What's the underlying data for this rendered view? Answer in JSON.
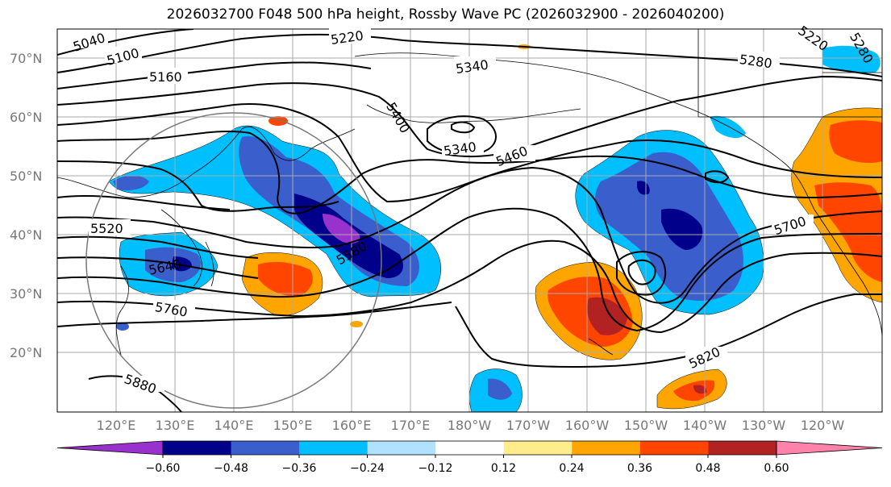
{
  "title": "2026032700 F048 500 hPa height, Rossby Wave PC (2026032900 - 2026040200)",
  "lat_labels": [
    "70°N",
    "60°N",
    "50°N",
    "40°N",
    "30°N",
    "20°N"
  ],
  "lon_labels": [
    "120°E",
    "130°E",
    "140°E",
    "150°E",
    "160°E",
    "170°E",
    "180°W",
    "170°W",
    "160°W",
    "150°W",
    "140°W",
    "130°W",
    "120°W"
  ],
  "contour_labels": [
    "5040",
    "5100",
    "5160",
    "5220",
    "5280",
    "5340",
    "5340",
    "5400",
    "5460",
    "5520",
    "5580",
    "5640",
    "5700",
    "5760",
    "5820",
    "5880",
    "5220",
    "5280"
  ],
  "colorbar": {
    "ticks": [
      "−0.60",
      "−0.48",
      "−0.36",
      "−0.24",
      "−0.12",
      "0.12",
      "0.24",
      "0.36",
      "0.48",
      "0.60"
    ],
    "colors": [
      "#9932CC",
      "#00008B",
      "#3A5FCD",
      "#00BFFF",
      "#B0E2FF",
      "#FFFFFF",
      "#FFEC8B",
      "#FFA500",
      "#FF4500",
      "#B22222",
      "#FF82AB"
    ]
  },
  "map_colors": {
    "purple": "#9932CC",
    "navy": "#00008B",
    "blue": "#3A5FCD",
    "sky": "#00BFFF",
    "light_sky": "#B0E2FF",
    "yellow": "#FFEC8B",
    "orange": "#FFA500",
    "red_orange": "#FF4500",
    "dark_red": "#B22222",
    "pink": "#FF82AB"
  }
}
